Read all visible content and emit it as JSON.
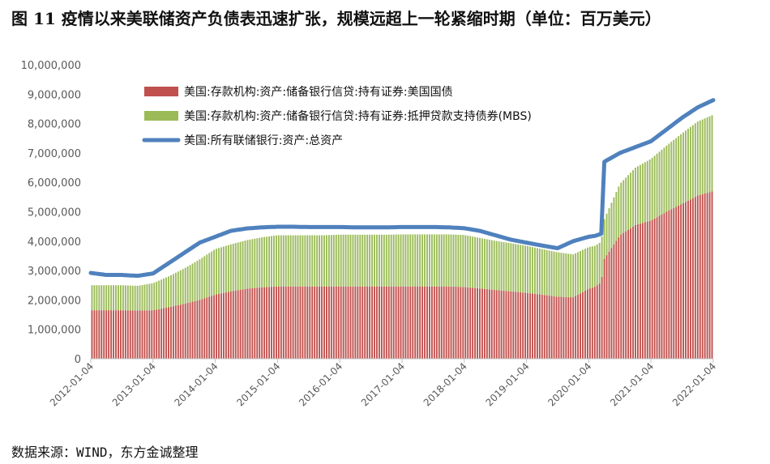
{
  "title": "图 11 疫情以来美联储资产负债表迅速扩张，规模远超上一轮紧缩时期（单位：百万美元）",
  "source": "数据来源：WIND，东方金诚整理",
  "colors": {
    "treasury": "#c0504d",
    "mbs": "#9bbb59",
    "total": "#4f81bd"
  },
  "chart_data": {
    "type": "bar",
    "title": "",
    "xlabel": "",
    "ylabel": "",
    "ylim": [
      0,
      10000000
    ],
    "yticks": [
      0,
      1000000,
      2000000,
      3000000,
      4000000,
      5000000,
      6000000,
      7000000,
      8000000,
      9000000,
      10000000
    ],
    "ytick_labels": [
      "0",
      "1,000,000",
      "2,000,000",
      "3,000,000",
      "4,000,000",
      "5,000,000",
      "6,000,000",
      "7,000,000",
      "8,000,000",
      "9,000,000",
      "10,000,000"
    ],
    "xtick_labels": [
      "2012-01-04",
      "2013-01-04",
      "2014-01-04",
      "2015-01-04",
      "2016-01-04",
      "2017-01-04",
      "2018-01-04",
      "2019-01-04",
      "2020-01-04",
      "2021-01-04",
      "2022-01-04"
    ],
    "legend_position": "top-left",
    "stacked": true,
    "x": [
      2012.0,
      2012.25,
      2012.5,
      2012.75,
      2013.0,
      2013.25,
      2013.5,
      2013.75,
      2014.0,
      2014.25,
      2014.5,
      2014.75,
      2015.0,
      2015.25,
      2015.5,
      2015.75,
      2016.0,
      2016.25,
      2016.5,
      2016.75,
      2017.0,
      2017.25,
      2017.5,
      2017.75,
      2018.0,
      2018.25,
      2018.5,
      2018.75,
      2019.0,
      2019.25,
      2019.5,
      2019.75,
      2020.0,
      2020.1,
      2020.2,
      2020.25,
      2020.5,
      2020.75,
      2021.0,
      2021.25,
      2021.5,
      2021.75,
      2022.0
    ],
    "series": [
      {
        "name": "美国:存款机构:资产:储备银行信贷:持有证券:美国国债",
        "kind": "bar",
        "values": [
          1650000,
          1650000,
          1650000,
          1640000,
          1650000,
          1750000,
          1870000,
          2000000,
          2180000,
          2290000,
          2380000,
          2430000,
          2460000,
          2460000,
          2460000,
          2460000,
          2460000,
          2460000,
          2460000,
          2460000,
          2460000,
          2460000,
          2460000,
          2460000,
          2440000,
          2390000,
          2340000,
          2290000,
          2240000,
          2180000,
          2110000,
          2090000,
          2380000,
          2450000,
          2600000,
          3400000,
          4200000,
          4550000,
          4700000,
          5000000,
          5270000,
          5550000,
          5700000
        ]
      },
      {
        "name": "美国:存款机构:资产:储备银行信贷:持有证券:抵押贷款支持债券(MBS)",
        "kind": "bar",
        "values": [
          850000,
          850000,
          850000,
          840000,
          920000,
          1050000,
          1200000,
          1380000,
          1550000,
          1600000,
          1650000,
          1700000,
          1740000,
          1740000,
          1740000,
          1740000,
          1760000,
          1760000,
          1760000,
          1760000,
          1770000,
          1770000,
          1770000,
          1770000,
          1770000,
          1720000,
          1670000,
          1640000,
          1600000,
          1550000,
          1510000,
          1460000,
          1420000,
          1390000,
          1380000,
          1350000,
          1750000,
          1950000,
          2100000,
          2250000,
          2400000,
          2520000,
          2600000
        ]
      },
      {
        "name": "美国:所有联储银行:资产:总资产",
        "kind": "line",
        "values": [
          2920000,
          2850000,
          2850000,
          2820000,
          2900000,
          3250000,
          3600000,
          3950000,
          4150000,
          4350000,
          4430000,
          4470000,
          4490000,
          4490000,
          4480000,
          4480000,
          4480000,
          4470000,
          4470000,
          4470000,
          4480000,
          4480000,
          4480000,
          4470000,
          4440000,
          4350000,
          4200000,
          4050000,
          3950000,
          3850000,
          3760000,
          4000000,
          4150000,
          4180000,
          4250000,
          6700000,
          7000000,
          7200000,
          7400000,
          7800000,
          8200000,
          8550000,
          8800000
        ]
      }
    ]
  }
}
